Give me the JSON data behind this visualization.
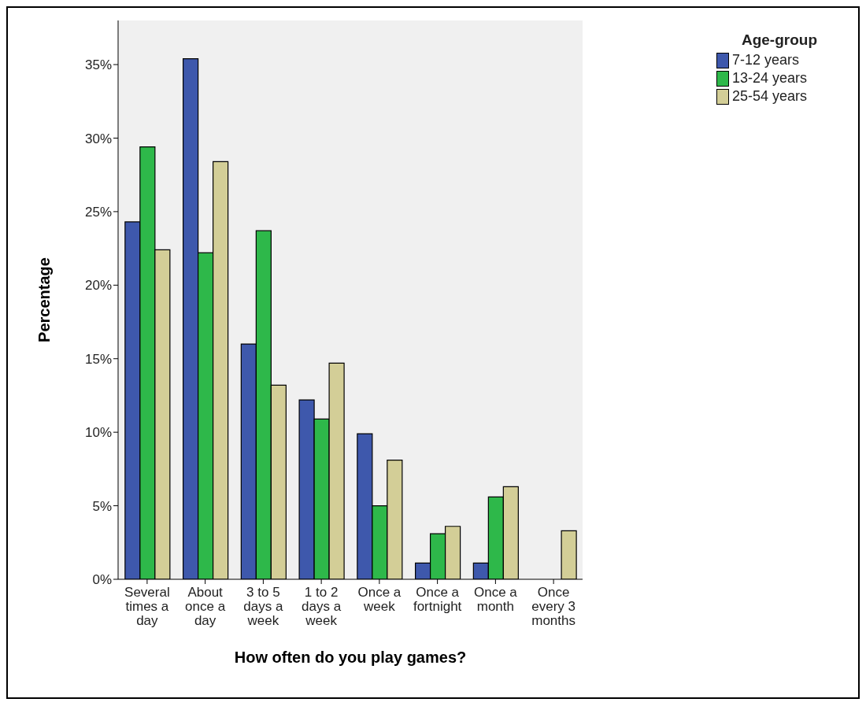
{
  "chart_data": {
    "type": "bar",
    "xlabel": "How often do you play games?",
    "ylabel": "Percentage",
    "legend_title": "Age-group",
    "categories": [
      "Several times a day",
      "About once a day",
      "3 to 5 days a week",
      "1 to 2 days a week",
      "Once a week",
      "Once a fortnight",
      "Once a month",
      "Once every 3 months"
    ],
    "series": [
      {
        "name": "7-12 years",
        "color": "#3e58ac",
        "values": [
          24.3,
          35.4,
          16.0,
          12.2,
          9.9,
          1.1,
          1.1,
          0
        ]
      },
      {
        "name": "13-24 years",
        "color": "#2eb84a",
        "values": [
          29.4,
          22.2,
          23.7,
          10.9,
          5.0,
          3.1,
          5.6,
          0
        ]
      },
      {
        "name": "25-54 years",
        "color": "#d3ce97",
        "values": [
          22.4,
          28.4,
          13.2,
          14.7,
          8.1,
          3.6,
          6.3,
          3.3
        ]
      }
    ],
    "ylim": [
      0,
      38
    ],
    "yticks": [
      {
        "value": 0,
        "label": "0%"
      },
      {
        "value": 5,
        "label": "5%"
      },
      {
        "value": 10,
        "label": "10%"
      },
      {
        "value": 15,
        "label": "15%"
      },
      {
        "value": 20,
        "label": "20%"
      },
      {
        "value": 25,
        "label": "25%"
      },
      {
        "value": 30,
        "label": "30%"
      },
      {
        "value": 35,
        "label": "35%"
      }
    ],
    "grid": false,
    "legend": "top right"
  }
}
